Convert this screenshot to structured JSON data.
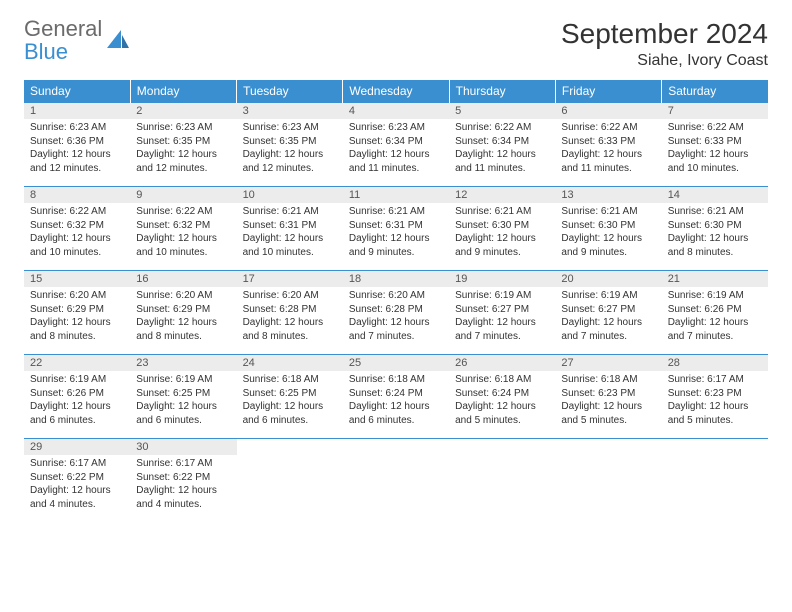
{
  "brand": {
    "word1": "General",
    "word2": "Blue",
    "word1_color": "#6b6b6b",
    "word2_color": "#3a8fd0",
    "icon_color": "#3a8fd0"
  },
  "header": {
    "title": "September 2024",
    "location": "Siahe, Ivory Coast"
  },
  "calendar": {
    "type": "table",
    "header_bg": "#3a8fd0",
    "header_fg": "#ffffff",
    "daynum_bg": "#ececec",
    "border_color": "#3a8fd0",
    "columns": [
      "Sunday",
      "Monday",
      "Tuesday",
      "Wednesday",
      "Thursday",
      "Friday",
      "Saturday"
    ],
    "days": [
      {
        "n": "1",
        "sunrise": "Sunrise: 6:23 AM",
        "sunset": "Sunset: 6:36 PM",
        "day1": "Daylight: 12 hours",
        "day2": "and 12 minutes."
      },
      {
        "n": "2",
        "sunrise": "Sunrise: 6:23 AM",
        "sunset": "Sunset: 6:35 PM",
        "day1": "Daylight: 12 hours",
        "day2": "and 12 minutes."
      },
      {
        "n": "3",
        "sunrise": "Sunrise: 6:23 AM",
        "sunset": "Sunset: 6:35 PM",
        "day1": "Daylight: 12 hours",
        "day2": "and 12 minutes."
      },
      {
        "n": "4",
        "sunrise": "Sunrise: 6:23 AM",
        "sunset": "Sunset: 6:34 PM",
        "day1": "Daylight: 12 hours",
        "day2": "and 11 minutes."
      },
      {
        "n": "5",
        "sunrise": "Sunrise: 6:22 AM",
        "sunset": "Sunset: 6:34 PM",
        "day1": "Daylight: 12 hours",
        "day2": "and 11 minutes."
      },
      {
        "n": "6",
        "sunrise": "Sunrise: 6:22 AM",
        "sunset": "Sunset: 6:33 PM",
        "day1": "Daylight: 12 hours",
        "day2": "and 11 minutes."
      },
      {
        "n": "7",
        "sunrise": "Sunrise: 6:22 AM",
        "sunset": "Sunset: 6:33 PM",
        "day1": "Daylight: 12 hours",
        "day2": "and 10 minutes."
      },
      {
        "n": "8",
        "sunrise": "Sunrise: 6:22 AM",
        "sunset": "Sunset: 6:32 PM",
        "day1": "Daylight: 12 hours",
        "day2": "and 10 minutes."
      },
      {
        "n": "9",
        "sunrise": "Sunrise: 6:22 AM",
        "sunset": "Sunset: 6:32 PM",
        "day1": "Daylight: 12 hours",
        "day2": "and 10 minutes."
      },
      {
        "n": "10",
        "sunrise": "Sunrise: 6:21 AM",
        "sunset": "Sunset: 6:31 PM",
        "day1": "Daylight: 12 hours",
        "day2": "and 10 minutes."
      },
      {
        "n": "11",
        "sunrise": "Sunrise: 6:21 AM",
        "sunset": "Sunset: 6:31 PM",
        "day1": "Daylight: 12 hours",
        "day2": "and 9 minutes."
      },
      {
        "n": "12",
        "sunrise": "Sunrise: 6:21 AM",
        "sunset": "Sunset: 6:30 PM",
        "day1": "Daylight: 12 hours",
        "day2": "and 9 minutes."
      },
      {
        "n": "13",
        "sunrise": "Sunrise: 6:21 AM",
        "sunset": "Sunset: 6:30 PM",
        "day1": "Daylight: 12 hours",
        "day2": "and 9 minutes."
      },
      {
        "n": "14",
        "sunrise": "Sunrise: 6:21 AM",
        "sunset": "Sunset: 6:30 PM",
        "day1": "Daylight: 12 hours",
        "day2": "and 8 minutes."
      },
      {
        "n": "15",
        "sunrise": "Sunrise: 6:20 AM",
        "sunset": "Sunset: 6:29 PM",
        "day1": "Daylight: 12 hours",
        "day2": "and 8 minutes."
      },
      {
        "n": "16",
        "sunrise": "Sunrise: 6:20 AM",
        "sunset": "Sunset: 6:29 PM",
        "day1": "Daylight: 12 hours",
        "day2": "and 8 minutes."
      },
      {
        "n": "17",
        "sunrise": "Sunrise: 6:20 AM",
        "sunset": "Sunset: 6:28 PM",
        "day1": "Daylight: 12 hours",
        "day2": "and 8 minutes."
      },
      {
        "n": "18",
        "sunrise": "Sunrise: 6:20 AM",
        "sunset": "Sunset: 6:28 PM",
        "day1": "Daylight: 12 hours",
        "day2": "and 7 minutes."
      },
      {
        "n": "19",
        "sunrise": "Sunrise: 6:19 AM",
        "sunset": "Sunset: 6:27 PM",
        "day1": "Daylight: 12 hours",
        "day2": "and 7 minutes."
      },
      {
        "n": "20",
        "sunrise": "Sunrise: 6:19 AM",
        "sunset": "Sunset: 6:27 PM",
        "day1": "Daylight: 12 hours",
        "day2": "and 7 minutes."
      },
      {
        "n": "21",
        "sunrise": "Sunrise: 6:19 AM",
        "sunset": "Sunset: 6:26 PM",
        "day1": "Daylight: 12 hours",
        "day2": "and 7 minutes."
      },
      {
        "n": "22",
        "sunrise": "Sunrise: 6:19 AM",
        "sunset": "Sunset: 6:26 PM",
        "day1": "Daylight: 12 hours",
        "day2": "and 6 minutes."
      },
      {
        "n": "23",
        "sunrise": "Sunrise: 6:19 AM",
        "sunset": "Sunset: 6:25 PM",
        "day1": "Daylight: 12 hours",
        "day2": "and 6 minutes."
      },
      {
        "n": "24",
        "sunrise": "Sunrise: 6:18 AM",
        "sunset": "Sunset: 6:25 PM",
        "day1": "Daylight: 12 hours",
        "day2": "and 6 minutes."
      },
      {
        "n": "25",
        "sunrise": "Sunrise: 6:18 AM",
        "sunset": "Sunset: 6:24 PM",
        "day1": "Daylight: 12 hours",
        "day2": "and 6 minutes."
      },
      {
        "n": "26",
        "sunrise": "Sunrise: 6:18 AM",
        "sunset": "Sunset: 6:24 PM",
        "day1": "Daylight: 12 hours",
        "day2": "and 5 minutes."
      },
      {
        "n": "27",
        "sunrise": "Sunrise: 6:18 AM",
        "sunset": "Sunset: 6:23 PM",
        "day1": "Daylight: 12 hours",
        "day2": "and 5 minutes."
      },
      {
        "n": "28",
        "sunrise": "Sunrise: 6:17 AM",
        "sunset": "Sunset: 6:23 PM",
        "day1": "Daylight: 12 hours",
        "day2": "and 5 minutes."
      },
      {
        "n": "29",
        "sunrise": "Sunrise: 6:17 AM",
        "sunset": "Sunset: 6:22 PM",
        "day1": "Daylight: 12 hours",
        "day2": "and 4 minutes."
      },
      {
        "n": "30",
        "sunrise": "Sunrise: 6:17 AM",
        "sunset": "Sunset: 6:22 PM",
        "day1": "Daylight: 12 hours",
        "day2": "and 4 minutes."
      }
    ]
  }
}
